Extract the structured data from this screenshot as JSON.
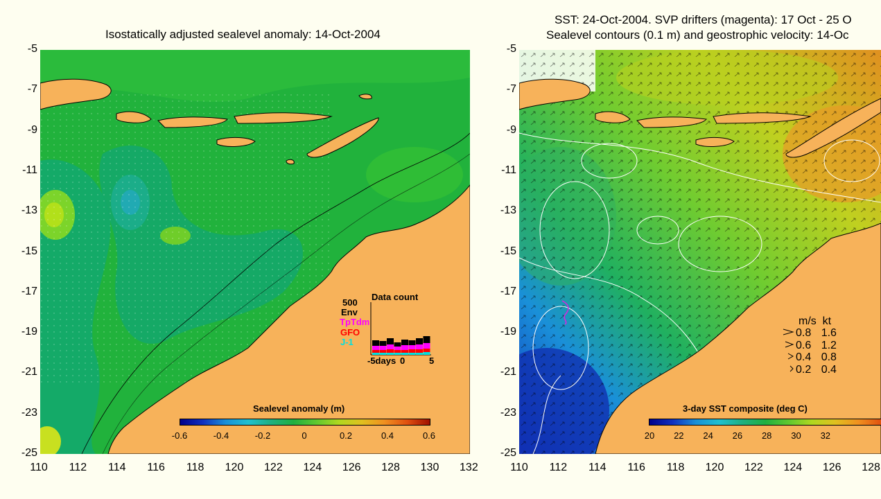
{
  "left_panel": {
    "title": "Isostatically adjusted sealevel anomaly: 14-Oct-2004",
    "y_ticks": [
      "-5",
      "-7",
      "-9",
      "-11",
      "-13",
      "-15",
      "-17",
      "-19",
      "-21",
      "-23",
      "-25"
    ],
    "x_ticks": [
      "110",
      "112",
      "114",
      "116",
      "118",
      "120",
      "122",
      "124",
      "126",
      "128",
      "130",
      "132"
    ],
    "colorbar_label": "Sealevel anomaly (m)",
    "colorbar_ticks": [
      "-0.6",
      "-0.4",
      "-0.2",
      "0",
      "0.2",
      "0.4",
      "0.6"
    ],
    "data_count": {
      "title": "Data count",
      "max_label": "500",
      "series": [
        "Env",
        "TpTdm",
        "GFO",
        "J-1"
      ],
      "series_colors": [
        "#000000",
        "#ff00ff",
        "#ff0000",
        "#00e0e0"
      ],
      "x_left": "-5days",
      "x_mid": "0",
      "x_right": "5"
    }
  },
  "right_panel": {
    "title_line1": "SST: 24-Oct-2004. SVP drifters (magenta): 17 Oct - 25 O",
    "title_line2": "Sealevel contours (0.1 m) and geostrophic velocity: 14-Oc",
    "y_ticks": [
      "-5",
      "-7",
      "-9",
      "-11",
      "-13",
      "-15",
      "-17",
      "-19",
      "-21",
      "-23",
      "-25"
    ],
    "x_ticks": [
      "110",
      "112",
      "114",
      "116",
      "118",
      "120",
      "122",
      "124",
      "126",
      "128"
    ],
    "colorbar_label": "3-day SST composite (deg C)",
    "colorbar_ticks": [
      "20",
      "22",
      "24",
      "26",
      "28",
      "30",
      "32"
    ],
    "speed_legend": {
      "header_ms": "m/s",
      "header_kt": "kt",
      "rows": [
        {
          "ms": "0.8",
          "kt": "1.6"
        },
        {
          "ms": "0.6",
          "kt": "1.2"
        },
        {
          "ms": "0.4",
          "kt": "0.8"
        },
        {
          "ms": "0.2",
          "kt": "0.4"
        }
      ]
    }
  },
  "colors": {
    "land": "#f7b25a",
    "ocean_green": "#1fb43a",
    "background": "#fefef0"
  }
}
